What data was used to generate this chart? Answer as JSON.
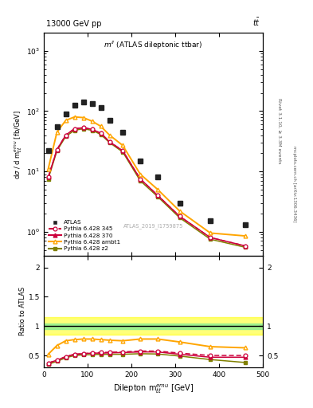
{
  "title_left": "13000 GeV pp",
  "title_right": "t$\\bar{t}$",
  "inner_title": "m$^{ll}$ (ATLAS dileptonic ttbar)",
  "xlabel": "Dilepton m$^{emu}_{ll}$ [GeV]",
  "ylabel_main": "d$\\sigma$ / d m$^{emu}_{ll}$ [fb/GeV]",
  "ylabel_ratio": "Ratio to ATLAS",
  "right_label1": "Rivet 3.1.10, ≥ 3.3M events",
  "right_label2": "mcplots.cern.ch [arXiv:1306.3436]",
  "watermark": "ATLAS_2019_I1759875",
  "x_bins": [
    0,
    20,
    40,
    60,
    80,
    100,
    120,
    140,
    160,
    200,
    240,
    280,
    340,
    420,
    500
  ],
  "atlas_data": [
    22,
    55,
    90,
    125,
    140,
    135,
    115,
    70,
    45,
    15,
    8.0,
    3.0,
    1.5,
    1.3
  ],
  "py345_data": [
    8.0,
    23,
    40,
    51,
    53,
    50,
    43,
    31,
    22,
    7.5,
    4.0,
    1.8,
    0.8,
    0.58
  ],
  "py370_data": [
    8.0,
    23,
    40,
    51,
    53,
    50,
    43,
    31,
    22,
    7.5,
    4.0,
    1.8,
    0.8,
    0.58
  ],
  "py_ambt1_data": [
    11,
    45,
    70,
    80,
    78,
    68,
    56,
    40,
    27,
    9.0,
    5.0,
    2.2,
    0.95,
    0.85
  ],
  "py_z2_data": [
    7.5,
    22,
    38,
    48,
    51,
    48,
    41,
    30,
    21,
    7.0,
    3.8,
    1.7,
    0.75,
    0.55
  ],
  "ratio_345": [
    0.37,
    0.42,
    0.48,
    0.52,
    0.53,
    0.545,
    0.55,
    0.555,
    0.56,
    0.575,
    0.575,
    0.54,
    0.5,
    0.5
  ],
  "ratio_370": [
    0.37,
    0.42,
    0.48,
    0.52,
    0.53,
    0.54,
    0.54,
    0.545,
    0.55,
    0.56,
    0.56,
    0.52,
    0.47,
    0.47
  ],
  "ratio_ambt1": [
    0.52,
    0.67,
    0.75,
    0.77,
    0.78,
    0.78,
    0.77,
    0.76,
    0.75,
    0.78,
    0.78,
    0.73,
    0.65,
    0.63
  ],
  "ratio_z2": [
    0.35,
    0.4,
    0.46,
    0.5,
    0.51,
    0.515,
    0.52,
    0.52,
    0.52,
    0.53,
    0.525,
    0.49,
    0.43,
    0.38
  ],
  "color_atlas": "#222222",
  "color_345": "#cc003c",
  "color_370": "#cc003c",
  "color_ambt1": "#ffa500",
  "color_z2": "#808000",
  "ylim_main": [
    0.4,
    2000
  ],
  "ylim_ratio": [
    0.3,
    2.2
  ],
  "xlim": [
    0,
    500
  ],
  "figsize": [
    3.93,
    5.12
  ],
  "dpi": 100
}
